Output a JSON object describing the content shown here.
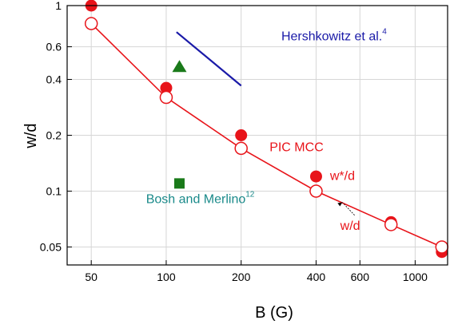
{
  "chart_data": {
    "type": "scatter",
    "xscale": "log",
    "yscale": "log",
    "xlim": [
      40,
      1350
    ],
    "ylim": [
      0.04,
      1
    ],
    "xlabel": "B (G)",
    "ylabel": "w/d",
    "grid": true,
    "x_ticks": [
      {
        "value": 50,
        "label": "50"
      },
      {
        "value": 100,
        "label": "100"
      },
      {
        "value": 200,
        "label": "200"
      },
      {
        "value": 400,
        "label": "400"
      },
      {
        "value": 600,
        "label": "600"
      },
      {
        "value": 1000,
        "label": "1000"
      }
    ],
    "y_ticks": [
      {
        "value": 0.05,
        "label": "0.05"
      },
      {
        "value": 0.1,
        "label": "0.1"
      },
      {
        "value": 0.2,
        "label": "0.2"
      },
      {
        "value": 0.4,
        "label": "0.4"
      },
      {
        "value": 0.6,
        "label": "0.6"
      },
      {
        "value": 1,
        "label": "1"
      }
    ],
    "series": [
      {
        "id": "pic-wstar",
        "marker": "filled-circle",
        "color": "#e8141a",
        "x": [
          50,
          100,
          200,
          400,
          800,
          1280
        ],
        "y": [
          1.0,
          0.36,
          0.2,
          0.12,
          0.068,
          0.047
        ]
      },
      {
        "id": "pic-w",
        "marker": "open-circle",
        "line": true,
        "color": "#e8141a",
        "x": [
          50,
          100,
          200,
          400,
          800,
          1280
        ],
        "y": [
          0.8,
          0.32,
          0.17,
          0.1,
          0.066,
          0.05
        ]
      },
      {
        "id": "hershkowitz",
        "marker": "line",
        "color": "#1a1aa8",
        "x": [
          110,
          200
        ],
        "y": [
          0.72,
          0.37
        ]
      },
      {
        "id": "hershkowitz-point",
        "marker": "filled-triangle",
        "color": "#1a7a1a",
        "x": [
          113
        ],
        "y": [
          0.47
        ]
      },
      {
        "id": "bosh-merlino",
        "marker": "filled-square",
        "color": "#1a7a1a",
        "x": [
          113
        ],
        "y": [
          0.11
        ]
      }
    ],
    "annotations": {
      "hershkowitz": {
        "text": "Hershkowitz et al.",
        "sup": "4",
        "color": "#1a1aa8",
        "x": 290,
        "y": 0.65
      },
      "bosh": {
        "text": "Bosh and Merlino",
        "sup": "12",
        "color": "#1a8a8a",
        "x": 83,
        "y": 0.086
      },
      "pic_mcc": {
        "text": "PIC MCC",
        "color": "#e8141a",
        "x": 260,
        "y": 0.164
      },
      "wstar_label": {
        "text": "w*/d",
        "color": "#e8141a",
        "x": 455,
        "y": 0.115
      },
      "wd_label": {
        "text": "w/d",
        "color": "#e8141a",
        "x": 500,
        "y": 0.062
      }
    }
  }
}
